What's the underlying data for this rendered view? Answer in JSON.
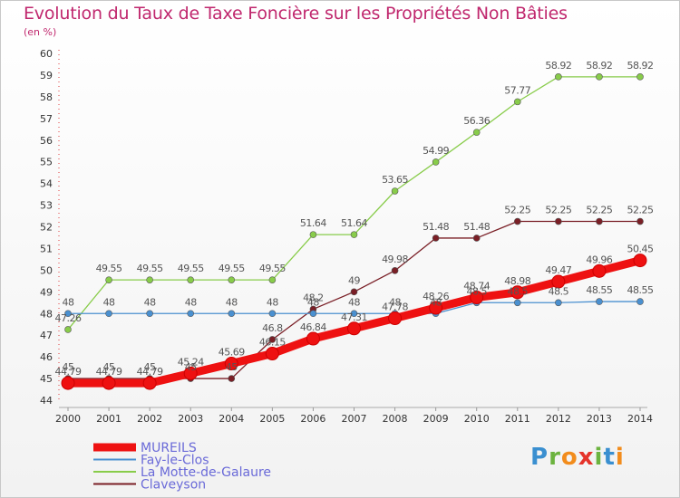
{
  "title": "Evolution du Taux de Taxe Foncière sur les Propriétés Non Bâties",
  "unit_label": "(en %)",
  "logo": {
    "text": "Proxiti",
    "letters": [
      {
        "ch": "P",
        "color": "#3a8fd0"
      },
      {
        "ch": "r",
        "color": "#6cb33f"
      },
      {
        "ch": "o",
        "color": "#f28c1c"
      },
      {
        "ch": "x",
        "color": "#e5332a"
      },
      {
        "ch": "i",
        "color": "#6cb33f"
      },
      {
        "ch": "t",
        "color": "#3a8fd0"
      },
      {
        "ch": "i",
        "color": "#f28c1c"
      }
    ]
  },
  "chart_data": {
    "type": "line",
    "title": "Evolution du Taux de Taxe Foncière sur les Propriétés Non Bâties",
    "ylabel": "(en %)",
    "xlabel": "",
    "x": [
      2000,
      2001,
      2002,
      2003,
      2004,
      2005,
      2006,
      2007,
      2008,
      2009,
      2010,
      2011,
      2012,
      2013,
      2014
    ],
    "ylim": [
      44,
      60
    ],
    "yticks": [
      44,
      45,
      46,
      47,
      48,
      49,
      50,
      51,
      52,
      53,
      54,
      55,
      56,
      57,
      58,
      59,
      60
    ],
    "grid": false,
    "legend_position": "bottom-left",
    "series": [
      {
        "name": "MUREILS",
        "color": "#ee1111",
        "width": 9,
        "marker": 7,
        "values": [
          44.79,
          44.79,
          44.79,
          45.24,
          45.69,
          46.15,
          46.84,
          47.31,
          47.78,
          48.26,
          48.74,
          48.98,
          49.47,
          49.96,
          50.45
        ],
        "labels": [
          "44.79",
          "44.79",
          "44.79",
          "45.24",
          "45.69",
          "46.15",
          "46.84",
          "47.31",
          "47.78",
          "48.26",
          "48.74",
          "48.98",
          "49.47",
          "49.96",
          "50.45"
        ]
      },
      {
        "name": "Fay-le-Clos",
        "color": "#4a90d0",
        "width": 1.3,
        "marker": 3.5,
        "values": [
          48,
          48,
          48,
          48,
          48,
          48,
          48,
          48,
          48,
          48,
          48.5,
          48.5,
          48.5,
          48.55,
          48.55
        ],
        "labels": [
          "48",
          "48",
          "48",
          "48",
          "48",
          "48",
          "48",
          "48",
          "48",
          "48",
          "48.5",
          "48.5",
          "48.5",
          "48.55",
          "48.55"
        ]
      },
      {
        "name": "La Motte-de-Galaure",
        "color": "#88cc4a",
        "width": 1.3,
        "marker": 3.5,
        "values": [
          47.26,
          49.55,
          49.55,
          49.55,
          49.55,
          49.55,
          51.64,
          51.64,
          53.65,
          54.99,
          56.36,
          57.77,
          58.92,
          58.92,
          58.92
        ],
        "labels": [
          "47.26",
          "49.55",
          "49.55",
          "49.55",
          "49.55",
          "49.55",
          "51.64",
          "51.64",
          "53.65",
          "54.99",
          "56.36",
          "57.77",
          "58.92",
          "58.92",
          "58.92"
        ]
      },
      {
        "name": "Claveyson",
        "color": "#7a1f26",
        "width": 1.3,
        "marker": 3.5,
        "values": [
          45,
          45,
          45,
          45,
          45,
          46.8,
          48.2,
          49,
          49.98,
          51.48,
          51.48,
          52.25,
          52.25,
          52.25,
          52.25
        ],
        "labels": [
          "45",
          "45",
          "45",
          "45",
          "45",
          "46.8",
          "48.2",
          "49",
          "49.98",
          "51.48",
          "51.48",
          "52.25",
          "52.25",
          "52.25",
          "52.25"
        ]
      }
    ]
  }
}
